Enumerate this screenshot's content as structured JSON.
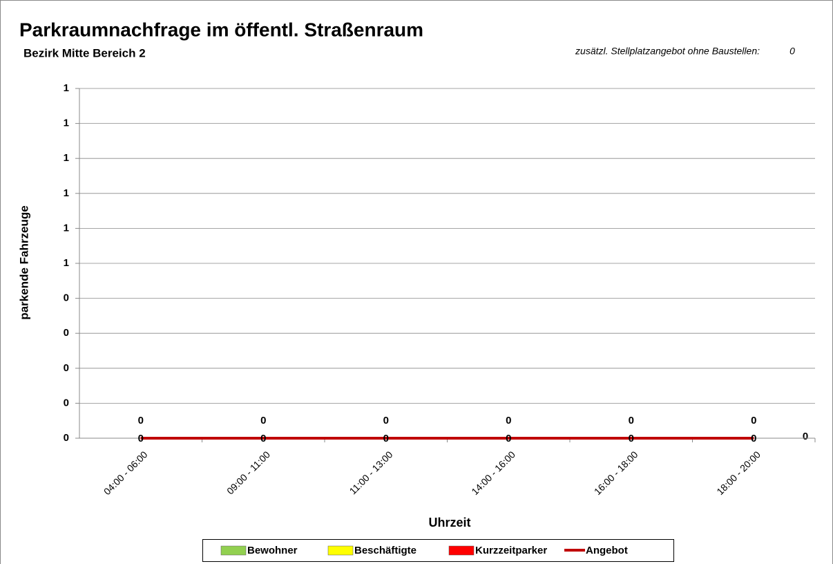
{
  "chart_data": {
    "type": "bar",
    "title": "Parkraumnachfrage im öffentl. Straßenraum",
    "subtitle": "Bezirk Mitte  Bereich 2",
    "annotation": "zusätzl. Stellplatzangebot ohne Baustellen:",
    "annotation_value": 0,
    "end_value": 0,
    "x_label": "Uhrzeit",
    "y_label": "parkende Fahrzeuge",
    "categories": [
      "04:00 - 06:00",
      "09:00 - 11:00",
      "11:00 - 13:00",
      "14:00 - 16:00",
      "16:00 - 18:00",
      "18:00 - 20:00"
    ],
    "series": [
      {
        "name": "Bewohner",
        "color": "#92d050",
        "values": [
          0,
          0,
          0,
          0,
          0,
          0
        ]
      },
      {
        "name": "Beschäftigte",
        "color": "#ffff00",
        "values": [
          0,
          0,
          0,
          0,
          0,
          0
        ]
      },
      {
        "name": "Kurzzeitparker",
        "color": "#ff0000",
        "values": [
          0,
          0,
          0,
          0,
          0,
          0
        ]
      },
      {
        "name": "Angebot",
        "color": "#c00000",
        "type": "line",
        "values": [
          0,
          0,
          0,
          0,
          0,
          0
        ]
      }
    ],
    "stacked": true,
    "ylim": [
      0,
      1
    ],
    "yticks": [
      0,
      {
        "value": 0.1,
        "label": "0"
      },
      {
        "value": 0.2,
        "label": "0"
      },
      {
        "value": 0.3,
        "label": "0"
      },
      {
        "value": 0.4,
        "label": "0"
      },
      {
        "value": 0.5,
        "label": "1"
      },
      {
        "value": 0.6,
        "label": "1"
      },
      {
        "value": 0.7,
        "label": "1"
      },
      {
        "value": 0.8,
        "label": "1"
      },
      {
        "value": 0.9,
        "label": "1"
      },
      1
    ],
    "grid": true
  }
}
